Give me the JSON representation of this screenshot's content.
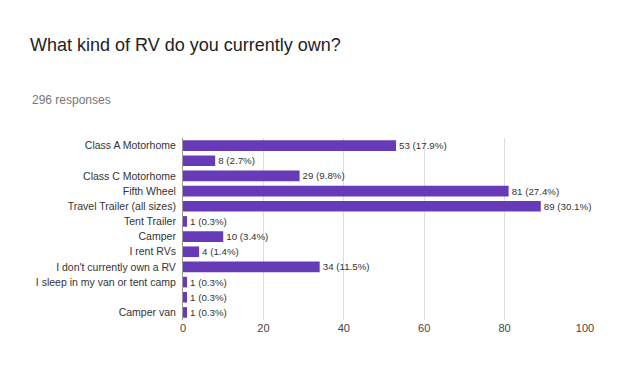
{
  "chart_data": {
    "type": "bar",
    "orientation": "horizontal",
    "title": "What kind of RV do you currently own?",
    "subtitle": "296 responses",
    "categories": [
      "Class A Motorhome",
      null,
      "Class C Motorhome",
      "Fifth Wheel",
      "Travel Trailer (all sizes)",
      "Tent Trailer",
      "Camper",
      "I rent RVs",
      "I don't currently own a RV",
      "I sleep in my van or tent camp",
      null,
      "Camper van"
    ],
    "values": [
      53,
      8,
      29,
      81,
      89,
      1,
      10,
      4,
      34,
      1,
      1,
      1
    ],
    "value_labels": [
      "53 (17.9%)",
      "8 (2.7%)",
      "29 (9.8%)",
      "81 (27.4%)",
      "89 (30.1%)",
      "1 (0.3%)",
      "10 (3.4%)",
      "4 (1.4%)",
      "34 (11.5%)",
      "1 (0.3%)",
      "1 (0.3%)",
      "1 (0.3%)"
    ],
    "data_labels": true,
    "color": "#673ab7",
    "xlim": [
      0,
      100
    ],
    "xticks": [
      0,
      20,
      40,
      60,
      80,
      100
    ],
    "grid": true
  }
}
